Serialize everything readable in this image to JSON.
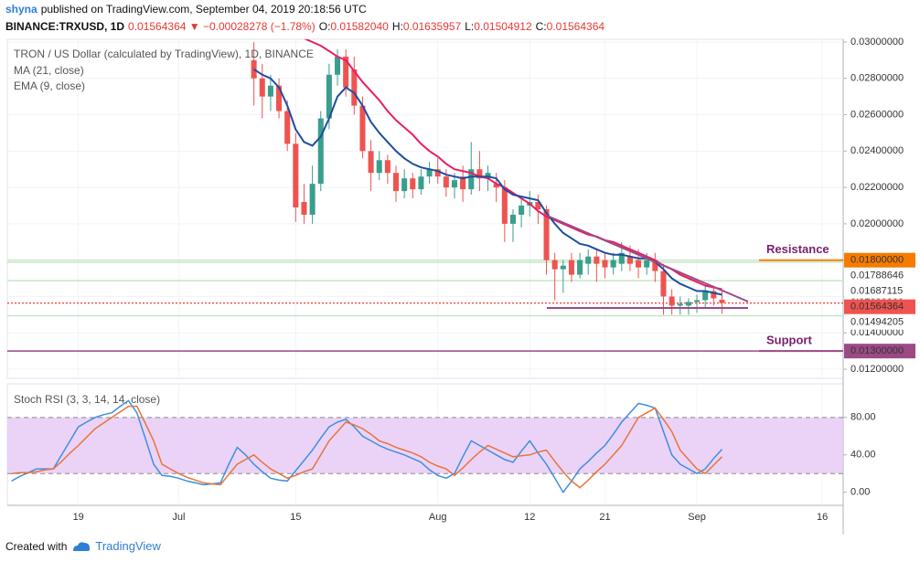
{
  "header": {
    "author": "shyna",
    "published": "published on TradingView.com, September 04, 2019 20:18:56 UTC",
    "symbol": "BINANCE:TRXUSD, 1D",
    "change": "0.01564364 ▼ −0.00028278 (−1.78%)",
    "o_label": "O:",
    "o": "0.01582040",
    "h_label": "H:",
    "h": "0.01635957",
    "l_label": "L:",
    "l": "0.01504912",
    "c_label": "C:",
    "c": "0.01564364"
  },
  "footer": {
    "created": "Created with",
    "brand": "TradingView"
  },
  "chart_data": [
    {
      "type": "candlestick",
      "title": "TRON / US Dollar (calculated by TradingView), 1D, BINANCE",
      "up_color": "#3a9e8c",
      "down_color": "#ef5350",
      "categories": [
        null,
        null,
        null,
        null,
        null,
        null,
        null,
        null,
        "19",
        null,
        null,
        null,
        null,
        null,
        null,
        null,
        null,
        null,
        null,
        null,
        "Jul",
        null,
        null,
        null,
        null,
        null,
        null,
        null,
        null,
        null,
        null,
        null,
        null,
        null,
        "15",
        null,
        null,
        null,
        null,
        null,
        null,
        null,
        null,
        null,
        null,
        null,
        null,
        null,
        null,
        null,
        null,
        "Aug",
        null,
        null,
        null,
        null,
        null,
        null,
        null,
        null,
        null,
        null,
        "12",
        null,
        null,
        null,
        null,
        null,
        null,
        null,
        null,
        "21",
        null,
        null,
        null,
        null,
        null,
        null,
        null,
        null,
        null,
        null,
        "Sep",
        null,
        null,
        null,
        null,
        null,
        null,
        null,
        null,
        null,
        null,
        null,
        null,
        null,
        null,
        "16",
        null,
        null
      ],
      "ohlc": [
        null,
        null,
        null,
        null,
        null,
        null,
        null,
        null,
        null,
        null,
        null,
        null,
        null,
        null,
        null,
        null,
        null,
        null,
        null,
        null,
        null,
        null,
        null,
        null,
        null,
        null,
        null,
        null,
        null,
        [
          0.029,
          0.03,
          0.0265,
          0.028
        ],
        [
          0.028,
          0.0288,
          0.0258,
          0.027
        ],
        [
          0.027,
          0.0282,
          0.0262,
          0.0276
        ],
        [
          0.0276,
          0.028,
          0.0258,
          0.0262
        ],
        [
          0.0262,
          0.0268,
          0.024,
          0.0244
        ],
        [
          0.0244,
          0.025,
          0.0201,
          0.0209
        ],
        [
          0.0212,
          0.0222,
          0.02,
          0.0205
        ],
        [
          0.0205,
          0.0232,
          0.02,
          0.0222
        ],
        [
          0.0222,
          0.0262,
          0.0218,
          0.0258
        ],
        [
          0.0258,
          0.0288,
          0.0252,
          0.0282
        ],
        [
          0.0282,
          0.0296,
          0.0276,
          0.0292
        ],
        [
          0.0292,
          0.0296,
          0.027,
          0.0275
        ],
        [
          0.0285,
          0.0292,
          0.026,
          0.0265
        ],
        [
          0.0265,
          0.027,
          0.0236,
          0.024
        ],
        [
          0.024,
          0.0246,
          0.0218,
          0.0228
        ],
        [
          0.0228,
          0.024,
          0.0224,
          0.0235
        ],
        [
          0.0235,
          0.0238,
          0.0222,
          0.0228
        ],
        [
          0.0228,
          0.0232,
          0.0212,
          0.0218
        ],
        [
          0.0218,
          0.023,
          0.0214,
          0.0225
        ],
        [
          0.0225,
          0.0228,
          0.0214,
          0.0219
        ],
        [
          0.0219,
          0.023,
          0.0216,
          0.0226
        ],
        [
          0.0226,
          0.0234,
          0.0222,
          0.023
        ],
        [
          0.023,
          0.0236,
          0.0222,
          0.0226
        ],
        [
          0.0226,
          0.023,
          0.0215,
          0.022
        ],
        [
          0.022,
          0.0228,
          0.0214,
          0.0224
        ],
        [
          0.0226,
          0.0232,
          0.0212,
          0.0219
        ],
        [
          0.0219,
          0.0245,
          0.0216,
          0.023
        ],
        [
          0.023,
          0.024,
          0.0218,
          0.0225
        ],
        [
          0.0225,
          0.0232,
          0.0218,
          0.0228
        ],
        [
          0.0222,
          0.0228,
          0.0212,
          0.022
        ],
        [
          0.022,
          0.0224,
          0.019,
          0.02
        ],
        [
          0.02,
          0.0208,
          0.019,
          0.0205
        ],
        [
          0.0205,
          0.0214,
          0.0198,
          0.021
        ],
        [
          0.021,
          0.0218,
          0.0204,
          0.0212
        ],
        [
          0.0212,
          0.0216,
          0.02,
          0.0208
        ],
        [
          0.0208,
          0.021,
          0.0172,
          0.018
        ],
        [
          0.018,
          0.0184,
          0.0158,
          0.0175
        ],
        [
          0.0175,
          0.018,
          0.0162,
          0.0177
        ],
        [
          0.018,
          0.0184,
          0.0168,
          0.0172
        ],
        [
          0.0172,
          0.0184,
          0.017,
          0.018
        ],
        [
          0.0178,
          0.0186,
          0.0172,
          0.0182
        ],
        [
          0.0182,
          0.0186,
          0.0168,
          0.0178
        ],
        [
          0.018,
          0.0184,
          0.017,
          0.0176
        ],
        [
          0.0176,
          0.0184,
          0.0172,
          0.018
        ],
        [
          0.0178,
          0.019,
          0.0174,
          0.0184
        ],
        [
          0.0182,
          0.0188,
          0.0174,
          0.0178
        ],
        [
          0.018,
          0.0186,
          0.017,
          0.0176
        ],
        [
          0.0176,
          0.0184,
          0.0172,
          0.018
        ],
        [
          0.018,
          0.0184,
          0.0168,
          0.0174
        ],
        [
          0.0174,
          0.0178,
          0.015,
          0.016
        ],
        [
          0.016,
          0.0164,
          0.015,
          0.0155
        ],
        [
          0.0155,
          0.016,
          0.015,
          0.0156
        ],
        [
          0.0155,
          0.0159,
          0.015,
          0.0157
        ],
        [
          0.0157,
          0.0161,
          0.0151,
          0.0158
        ],
        [
          0.0158,
          0.0166,
          0.0154,
          0.0163
        ],
        [
          0.0163,
          0.0166,
          0.0155,
          0.0159
        ],
        [
          0.0158204,
          0.01635957,
          0.01504912,
          0.01564364
        ],
        null,
        null,
        null,
        null,
        null,
        null,
        null,
        null,
        null,
        null,
        null,
        null,
        null,
        null
      ],
      "lines": [
        {
          "name": "MA (21, close)",
          "color": "#e91e63",
          "values": [
            null,
            null,
            null,
            null,
            null,
            null,
            null,
            null,
            null,
            null,
            null,
            null,
            null,
            null,
            null,
            null,
            null,
            null,
            null,
            null,
            null,
            null,
            null,
            null,
            null,
            null,
            null,
            null,
            null,
            null,
            null,
            null,
            null,
            null,
            null,
            0.0302,
            0.03,
            0.0298,
            0.0295,
            0.0292,
            0.029,
            0.0284,
            0.0278,
            0.0273,
            0.0268,
            0.0262,
            0.0257,
            0.0253,
            0.0249,
            0.0244,
            0.024,
            0.0237,
            0.0233,
            0.023,
            0.0229,
            0.0228,
            0.0226,
            0.0225,
            0.0222,
            0.022,
            0.0217,
            0.0214,
            0.0211,
            0.0207,
            0.0204,
            0.0202,
            0.02,
            0.0198,
            0.0196,
            0.0194,
            0.0193,
            0.0191,
            0.019,
            0.0188,
            0.0186,
            0.0184,
            0.0182,
            0.018,
            0.0177,
            0.0175,
            0.0172,
            0.017,
            0.0168,
            0.0166,
            0.0165,
            0.0164,
            null,
            null,
            null,
            null,
            null,
            null,
            null,
            null,
            null,
            null,
            null,
            null,
            null,
            null
          ]
        },
        {
          "name": "EMA (9, close)",
          "color": "#1e4da1",
          "values": [
            null,
            null,
            null,
            null,
            null,
            null,
            null,
            null,
            null,
            null,
            null,
            null,
            null,
            null,
            null,
            null,
            null,
            null,
            null,
            null,
            null,
            null,
            null,
            null,
            null,
            null,
            null,
            null,
            null,
            0.0285,
            0.0282,
            0.028,
            0.0275,
            0.0265,
            0.0252,
            0.0245,
            0.0243,
            0.0248,
            0.0258,
            0.027,
            0.0275,
            0.0272,
            0.0265,
            0.0256,
            0.025,
            0.0245,
            0.024,
            0.0236,
            0.0233,
            0.0231,
            0.023,
            0.0229,
            0.0227,
            0.0226,
            0.0225,
            0.0226,
            0.0226,
            0.0226,
            0.0225,
            0.0219,
            0.0216,
            0.0215,
            0.0214,
            0.0213,
            0.0206,
            0.02,
            0.0195,
            0.0192,
            0.0189,
            0.0188,
            0.0186,
            0.0184,
            0.0183,
            0.0183,
            0.0182,
            0.0181,
            0.0181,
            0.0179,
            0.0175,
            0.017,
            0.0167,
            0.0165,
            0.0163,
            0.0163,
            0.0162,
            0.0161,
            null,
            null,
            null,
            null,
            null,
            null,
            null,
            null,
            null,
            null,
            null,
            null,
            null,
            null
          ]
        }
      ],
      "ylim": [
        0.0115,
        0.03015
      ],
      "yticks": [
        {
          "value": 0.012,
          "label": "0.01200000"
        },
        {
          "value": 0.014,
          "label": "0.01400000"
        },
        {
          "value": 0.016,
          "label": "0.01600000"
        },
        {
          "value": 0.018,
          "label": "0.01800000"
        },
        {
          "value": 0.02,
          "label": "0.02000000"
        },
        {
          "value": 0.022,
          "label": "0.02200000"
        },
        {
          "value": 0.024,
          "label": "0.02400000"
        },
        {
          "value": 0.026,
          "label": "0.02600000"
        },
        {
          "value": 0.028,
          "label": "0.02800000"
        },
        {
          "value": 0.03,
          "label": "0.03000000"
        }
      ],
      "price_tags": [
        {
          "value": 0.018,
          "label": "0.01800000",
          "background": "#f57c00",
          "line_color": "#c8e6c9",
          "line_style": "solid"
        },
        {
          "value": 0.01788646,
          "label": "0.01788646",
          "background": "#ffffff",
          "line_color": "#c8e6c9",
          "line_style": "solid"
        },
        {
          "value": 0.01687115,
          "label": "0.01687115",
          "background": "#ffffff",
          "line_color": "#c8e6c9",
          "line_style": "solid"
        },
        {
          "value": 0.01564364,
          "label": "0.01564364",
          "background": "#ef5350",
          "line_color": "#ef5350",
          "line_style": "dotted"
        },
        {
          "value": 0.01494205,
          "label": "0.01494205",
          "background": "#ffffff",
          "line_color": "#c8e6c9",
          "line_style": "solid"
        },
        {
          "value": 0.013,
          "label": "0.01300000",
          "background": "#9c4a86",
          "line_color": "#9c4a86",
          "line_style": "solid"
        }
      ],
      "annotations": [
        {
          "text": "Resistance",
          "value": 0.018,
          "color": "#f57c00"
        },
        {
          "text": "Support",
          "value": 0.013,
          "color": "#9c4a86"
        }
      ]
    },
    {
      "type": "line",
      "title": "Stoch RSI (3, 3, 14, 14, close)",
      "series": [
        {
          "color": "#3d8fe0",
          "values": [
            12,
            17,
            21,
            25,
            25,
            25,
            40,
            55,
            70,
            75,
            80,
            83,
            85,
            92,
            98,
            85,
            58,
            30,
            18,
            17,
            15,
            12,
            10,
            8,
            9,
            10,
            30,
            48,
            40,
            30,
            22,
            15,
            13,
            12,
            23,
            34,
            45,
            58,
            70,
            75,
            78,
            70,
            60,
            55,
            50,
            46,
            43,
            40,
            36,
            32,
            24,
            18,
            15,
            20,
            38,
            55,
            50,
            45,
            40,
            35,
            32,
            44,
            55,
            42,
            30,
            15,
            0,
            12,
            25,
            33,
            42,
            50,
            62,
            75,
            85,
            95,
            93,
            90,
            65,
            40,
            30,
            25,
            20,
            25,
            36,
            46,
            null,
            null,
            null,
            null,
            null,
            null,
            null,
            null,
            null,
            null,
            null,
            null,
            null,
            null
          ]
        },
        {
          "color": "#e8743b",
          "values": [
            20,
            21,
            21,
            22,
            24,
            25,
            33,
            42,
            50,
            59,
            68,
            74,
            80,
            86,
            92,
            92,
            74,
            55,
            30,
            25,
            20,
            16,
            13,
            10,
            9,
            8,
            19,
            30,
            35,
            40,
            32,
            25,
            20,
            15,
            18,
            22,
            25,
            40,
            55,
            65,
            75,
            72,
            68,
            62,
            55,
            52,
            48,
            45,
            42,
            38,
            32,
            28,
            25,
            18,
            26,
            35,
            43,
            50,
            46,
            42,
            38,
            39,
            40,
            43,
            45,
            33,
            22,
            12,
            5,
            13,
            22,
            30,
            40,
            50,
            65,
            80,
            85,
            90,
            78,
            65,
            45,
            35,
            25,
            20,
            29,
            38,
            null,
            null,
            null,
            null,
            null,
            null,
            null,
            null,
            null,
            null,
            null,
            null,
            null,
            null
          ]
        }
      ],
      "band": [
        20,
        80
      ],
      "band_color": "#e6c8f5",
      "ylim": [
        -14,
        116
      ],
      "yticks": [
        {
          "value": 0,
          "label": "0.00"
        },
        {
          "value": 40,
          "label": "40.00"
        },
        {
          "value": 80,
          "label": "80.00"
        }
      ]
    }
  ]
}
